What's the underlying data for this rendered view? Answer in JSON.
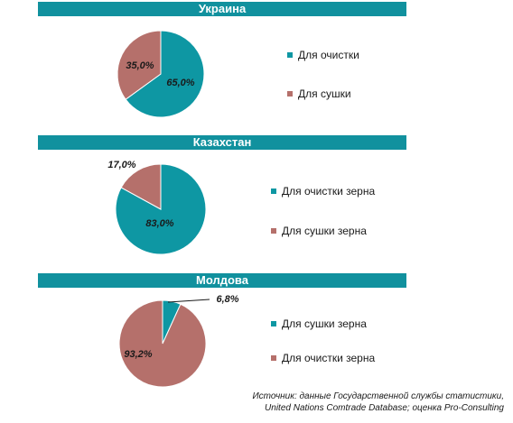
{
  "chart_data": [
    {
      "type": "pie",
      "title": "Украина",
      "slices": [
        {
          "label": "Для очистки",
          "value": 65.0,
          "display": "65,0%",
          "color": "#0e97a3"
        },
        {
          "label": "Для сушки",
          "value": 35.0,
          "display": "35,0%",
          "color": "#b5706b"
        }
      ],
      "legend": "right"
    },
    {
      "type": "pie",
      "title": "Казахстан",
      "slices": [
        {
          "label": "Для очистки зерна",
          "value": 83.0,
          "display": "83,0%",
          "color": "#0e97a3"
        },
        {
          "label": "Для сушки зерна",
          "value": 17.0,
          "display": "17,0%",
          "color": "#b5706b"
        }
      ],
      "legend": "right"
    },
    {
      "type": "pie",
      "title": "Молдова",
      "slices": [
        {
          "label": "Для сушки зерна",
          "value": 6.8,
          "display": "6,8%",
          "color": "#0e97a3"
        },
        {
          "label": "Для очистки зерна",
          "value": 93.2,
          "display": "93,2%",
          "color": "#b5706b"
        }
      ],
      "legend": "right"
    }
  ],
  "source": {
    "line1": "Источник: данные Государственной службы статистики,",
    "line2": "United Nations Comtrade Database; оценка Pro-Consulting"
  }
}
